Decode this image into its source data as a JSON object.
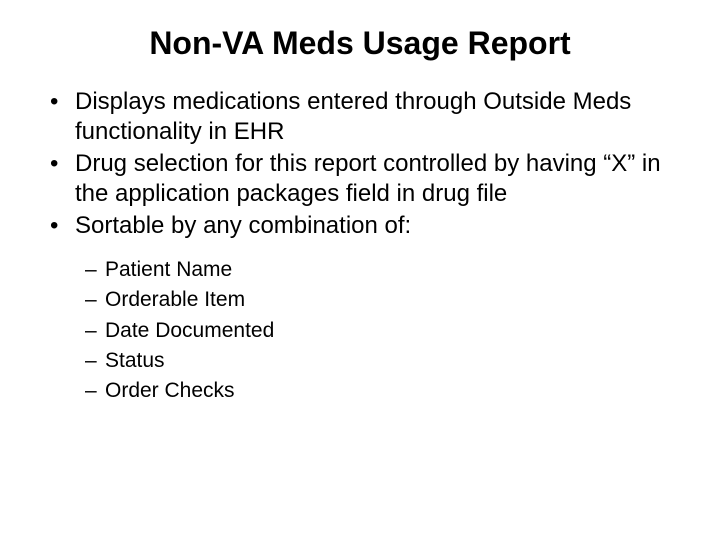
{
  "slide": {
    "title": "Non-VA Meds Usage Report",
    "bullets": [
      "Displays medications entered through Outside Meds functionality in EHR",
      "Drug selection for this report controlled by having “X” in the application packages field in drug file",
      "Sortable by any combination of:"
    ],
    "sub_bullets": [
      "Patient Name",
      "Orderable Item",
      "Date Documented",
      "Status",
      "Order Checks"
    ],
    "styling": {
      "background_color": "#ffffff",
      "text_color": "#000000",
      "title_fontsize": 32,
      "title_fontweight": "bold",
      "bullet_fontsize": 24,
      "sub_bullet_fontsize": 21,
      "font_family": "Arial",
      "title_align": "center",
      "bullet_marker": "•",
      "sub_bullet_marker": "–"
    }
  }
}
